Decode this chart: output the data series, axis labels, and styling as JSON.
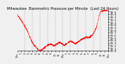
{
  "title": "Milwaukee  Barometric Pressure per Minute  (Last 24 Hours)",
  "background_color": "#f0f0f0",
  "plot_background": "#f0f0f0",
  "line_color": "#ff0000",
  "grid_color": "#888888",
  "title_fontsize": 3.8,
  "tick_fontsize": 2.8,
  "ylim": [
    29.0,
    30.55
  ],
  "yticks": [
    29.0,
    29.1,
    29.2,
    29.3,
    29.4,
    29.5,
    29.6,
    29.7,
    29.8,
    29.9,
    30.0,
    30.1,
    30.2,
    30.3,
    30.4,
    30.5
  ],
  "num_points": 1440,
  "pressure_profile": [
    30.38,
    30.32,
    30.28,
    30.22,
    30.18,
    30.12,
    30.06,
    30.0,
    29.94,
    29.88,
    29.82,
    29.74,
    29.66,
    29.56,
    29.48,
    29.4,
    29.34,
    29.28,
    29.22,
    29.18,
    29.14,
    29.1,
    29.06,
    29.03,
    29.01,
    29.0,
    29.01,
    29.03,
    29.06,
    29.09,
    29.12,
    29.15,
    29.18,
    29.2,
    29.22,
    29.24,
    29.26,
    29.24,
    29.22,
    29.2,
    29.18,
    29.2,
    29.22,
    29.25,
    29.28,
    29.3,
    29.32,
    29.3,
    29.28,
    29.25,
    29.22,
    29.2,
    29.22,
    29.24,
    29.27,
    29.3,
    29.32,
    29.34,
    29.36,
    29.34,
    29.32,
    29.3,
    29.28,
    29.25,
    29.28,
    29.3,
    29.33,
    29.36,
    29.38,
    29.4,
    29.42,
    29.44,
    29.46,
    29.48,
    29.5,
    29.52,
    29.5,
    29.48,
    29.5,
    29.52,
    29.55,
    29.58,
    29.62,
    29.66,
    29.72,
    29.8,
    29.9,
    30.02,
    30.16,
    30.32,
    30.45,
    30.5,
    30.52,
    30.53,
    30.54,
    30.54,
    30.54,
    30.54,
    30.54,
    30.54
  ],
  "xtick_labels": [
    "12a",
    "1",
    "2",
    "3",
    "4",
    "5",
    "6",
    "7",
    "8",
    "9",
    "10",
    "11",
    "12p",
    "1",
    "2",
    "3",
    "4",
    "5",
    "6",
    "7",
    "8",
    "9",
    "10",
    "11",
    "12a"
  ]
}
